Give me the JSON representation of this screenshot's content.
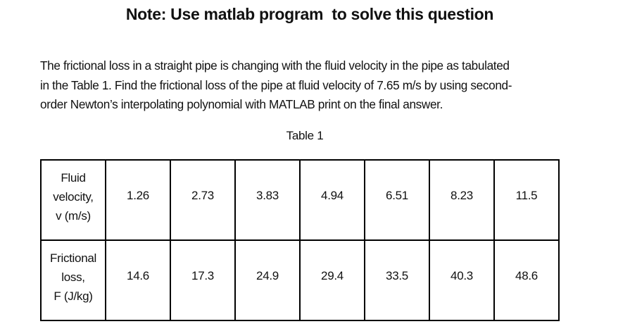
{
  "note": {
    "title": "Note: Use matlab program  to solve this question"
  },
  "question": {
    "lines": [
      "The frictional loss in a straight pipe is changing with the fluid velocity in the pipe as tabulated",
      "in the Table 1. Find the frictional loss of the pipe at fluid velocity of 7.65 m/s by using second-",
      "order Newton’s interpolating polynomial with MATLAB print on the final answer."
    ]
  },
  "table": {
    "caption": "Table 1",
    "rows": [
      {
        "header_lines": [
          "Fluid",
          "velocity,",
          "v (m/s)"
        ],
        "values": [
          "1.26",
          "2.73",
          "3.83",
          "4.94",
          "6.51",
          "8.23",
          "11.5"
        ]
      },
      {
        "header_lines": [
          "Frictional",
          "loss,",
          "F (J/kg)"
        ],
        "values": [
          "14.6",
          "17.3",
          "24.9",
          "29.4",
          "33.5",
          "40.3",
          "48.6"
        ]
      }
    ]
  }
}
